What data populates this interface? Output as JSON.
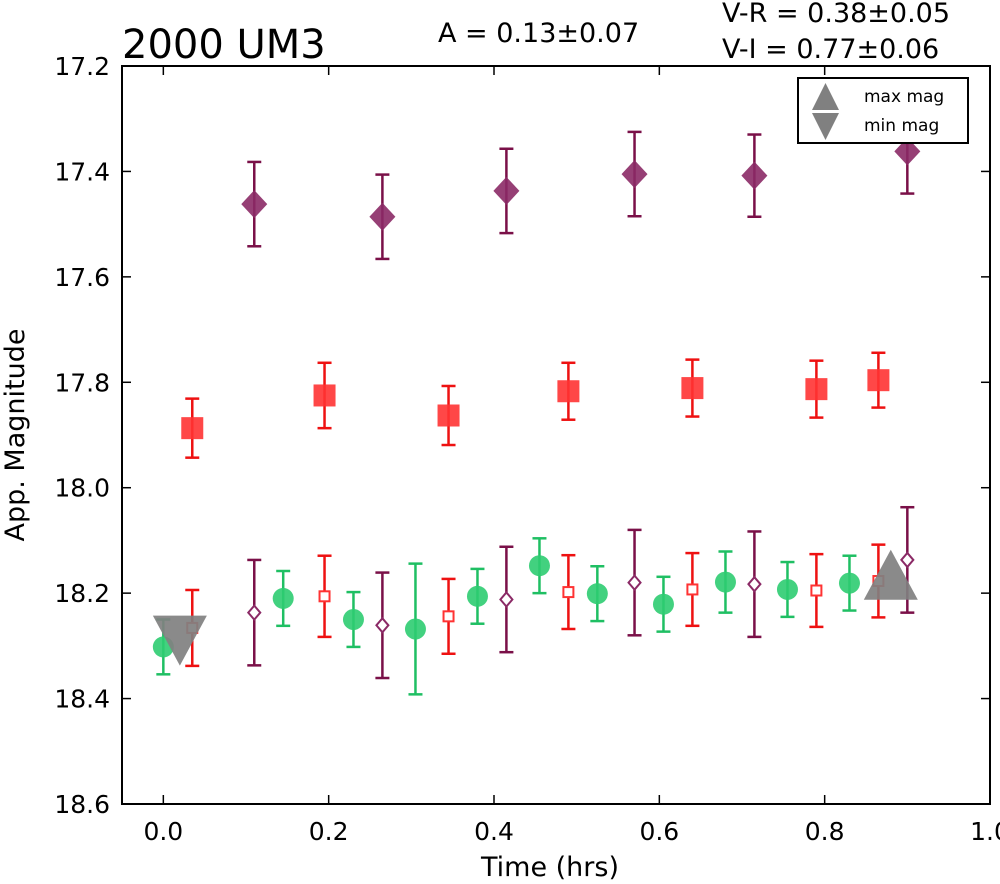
{
  "header": {
    "title": "2000 UM3",
    "amplitude": "A  = 0.13±0.07",
    "vr": "V-R = 0.38±0.05",
    "vi": "V-I  = 0.77±0.06"
  },
  "chart_data": {
    "type": "scatter",
    "title": "2000 UM3",
    "xlabel": "Time (hrs)",
    "ylabel": "App. Magnitude",
    "xlim": [
      -0.05,
      1.0
    ],
    "ylim": [
      18.6,
      17.2
    ],
    "y_inverted": true,
    "x_ticks": [
      "0.0",
      "0.2",
      "0.4",
      "0.6",
      "0.8",
      "1.0"
    ],
    "x_tick_values": [
      0.0,
      0.2,
      0.4,
      0.6,
      0.8,
      1.0
    ],
    "y_ticks": [
      "17.2",
      "17.4",
      "17.6",
      "17.8",
      "18.0",
      "18.2",
      "18.4",
      "18.6"
    ],
    "y_tick_values": [
      17.2,
      17.4,
      17.6,
      17.8,
      18.0,
      18.2,
      18.4,
      18.6
    ],
    "grid": false,
    "legend": {
      "placement": "top-right",
      "entries": [
        "max mag",
        "min mag"
      ]
    },
    "colors": {
      "purple": "#8b2a66",
      "purple_err": "#7a1048",
      "red": "#ff3333",
      "red_err": "#ee1111",
      "green": "#2ecc71",
      "green_err": "#1fbf63",
      "gray": "#808080"
    },
    "series": [
      {
        "marker": "diamond-filled",
        "color_key": "purple",
        "points": [
          {
            "x": 0.11,
            "y": 17.462,
            "err": 0.08
          },
          {
            "x": 0.265,
            "y": 17.486,
            "err": 0.08
          },
          {
            "x": 0.415,
            "y": 17.437,
            "err": 0.08
          },
          {
            "x": 0.57,
            "y": 17.405,
            "err": 0.08
          },
          {
            "x": 0.715,
            "y": 17.408,
            "err": 0.078
          },
          {
            "x": 0.9,
            "y": 17.362,
            "err": 0.08
          }
        ]
      },
      {
        "marker": "square-filled",
        "color_key": "red",
        "points": [
          {
            "x": 0.035,
            "y": 17.887,
            "err": 0.056
          },
          {
            "x": 0.195,
            "y": 17.825,
            "err": 0.062
          },
          {
            "x": 0.345,
            "y": 17.863,
            "err": 0.056
          },
          {
            "x": 0.49,
            "y": 17.817,
            "err": 0.054
          },
          {
            "x": 0.64,
            "y": 17.811,
            "err": 0.054
          },
          {
            "x": 0.79,
            "y": 17.813,
            "err": 0.054
          },
          {
            "x": 0.865,
            "y": 17.796,
            "err": 0.052
          }
        ]
      },
      {
        "marker": "circle-filled",
        "color_key": "green",
        "points": [
          {
            "x": 0.0,
            "y": 18.302,
            "err": 0.052
          },
          {
            "x": 0.145,
            "y": 18.21,
            "err": 0.052
          },
          {
            "x": 0.23,
            "y": 18.25,
            "err": 0.052
          },
          {
            "x": 0.305,
            "y": 18.268,
            "err": 0.124
          },
          {
            "x": 0.38,
            "y": 18.206,
            "err": 0.052
          },
          {
            "x": 0.455,
            "y": 18.148,
            "err": 0.052
          },
          {
            "x": 0.525,
            "y": 18.201,
            "err": 0.052
          },
          {
            "x": 0.605,
            "y": 18.221,
            "err": 0.052
          },
          {
            "x": 0.68,
            "y": 18.179,
            "err": 0.058
          },
          {
            "x": 0.755,
            "y": 18.193,
            "err": 0.052
          },
          {
            "x": 0.83,
            "y": 18.181,
            "err": 0.052
          }
        ]
      },
      {
        "marker": "square-open",
        "color_key": "red",
        "points": [
          {
            "x": 0.035,
            "y": 18.266,
            "err": 0.072
          },
          {
            "x": 0.195,
            "y": 18.206,
            "err": 0.077
          },
          {
            "x": 0.345,
            "y": 18.244,
            "err": 0.071
          },
          {
            "x": 0.49,
            "y": 18.198,
            "err": 0.07
          },
          {
            "x": 0.64,
            "y": 18.193,
            "err": 0.069
          },
          {
            "x": 0.79,
            "y": 18.195,
            "err": 0.069
          },
          {
            "x": 0.865,
            "y": 18.177,
            "err": 0.069
          }
        ]
      },
      {
        "marker": "diamond-open",
        "color_key": "purple",
        "points": [
          {
            "x": 0.11,
            "y": 18.237,
            "err": 0.1
          },
          {
            "x": 0.265,
            "y": 18.261,
            "err": 0.1
          },
          {
            "x": 0.415,
            "y": 18.212,
            "err": 0.1
          },
          {
            "x": 0.57,
            "y": 18.18,
            "err": 0.1
          },
          {
            "x": 0.715,
            "y": 18.183,
            "err": 0.1
          },
          {
            "x": 0.9,
            "y": 18.137,
            "err": 0.1
          }
        ]
      }
    ],
    "extrema": [
      {
        "label": "min mag",
        "marker": "triangle-down",
        "x": 0.02,
        "y": 18.29
      },
      {
        "label": "max mag",
        "marker": "triangle-up",
        "x": 0.88,
        "y": 18.165
      }
    ]
  }
}
